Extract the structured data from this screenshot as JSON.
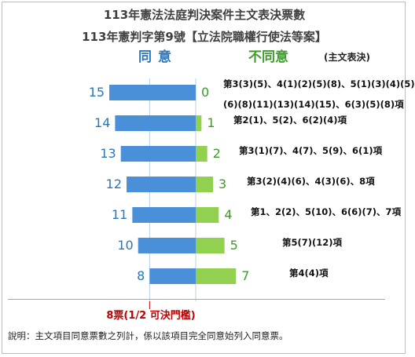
{
  "title_line1": "113年憲法法庭判決案件主文表決票數",
  "title_line2": "113年憲判字第9號【立法院職權行使法等案】",
  "agree_header": "同意",
  "disagree_header": "不同意",
  "note_header": "(主文表決)",
  "threshold_label": "8票(1/2 可決門檻)",
  "footnote": "說明：主文項目同意票數之列計，係以該項目完全同意始列入同意票。",
  "colors": {
    "agree": "#4a90d9",
    "disagree": "#92d050",
    "agree_text": "#2e75b6",
    "disagree_text": "#3f9a2b",
    "threshold": "#c00000"
  },
  "chart_data": {
    "type": "bar",
    "orientation": "horizontal-diverging",
    "series": [
      {
        "name": "同意",
        "values": [
          15,
          14,
          13,
          12,
          11,
          10,
          8
        ]
      },
      {
        "name": "不同意",
        "values": [
          0,
          1,
          2,
          3,
          4,
          5,
          7
        ]
      }
    ],
    "categories": [
      [
        "第3(3)(5)、4(1)(2)(5)(8)、5(1)(3)(4)(5)",
        "(6)(8)(11)(13)(14)(15)、6(3)(5)(8)項"
      ],
      [
        "第2(1)、5(2)、6(2)(4)項"
      ],
      [
        "第3(1)(7)、4(7)、5(9)、6(1)項"
      ],
      [
        "第3(2)(4)(6)、4(3)(6)、8項"
      ],
      [
        "第1、2(2)、5(10)、6(6)(7)、7項"
      ],
      [
        "第5(7)(12)項"
      ],
      [
        "第4(4)項"
      ]
    ],
    "threshold": 8,
    "max": 15
  }
}
